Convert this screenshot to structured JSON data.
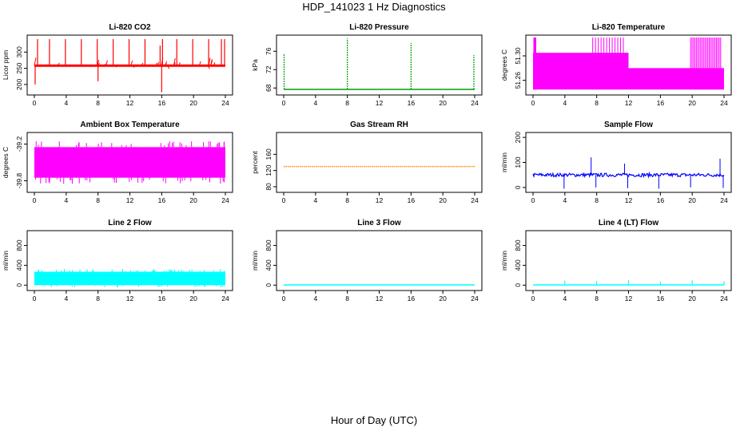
{
  "title": "HDP_141023  1 Hz Diagnostics",
  "xlabel": "Hour of Day (UTC)",
  "chart_data": [
    {
      "type": "line",
      "title": "Li-820 CO2",
      "ylabel": "Licor ppm",
      "color": "#ff0000",
      "xlim": [
        0,
        24
      ],
      "ylim": [
        175,
        345
      ],
      "xticks": [
        0,
        4,
        8,
        12,
        16,
        20,
        24
      ],
      "yticks": [
        200,
        250,
        300
      ],
      "baseline": 258,
      "spikes": [
        {
          "x": 0.1,
          "y": 200
        },
        {
          "x": 0.4,
          "y": 340
        },
        {
          "x": 1.9,
          "y": 340
        },
        {
          "x": 3.9,
          "y": 340
        },
        {
          "x": 5.9,
          "y": 340
        },
        {
          "x": 7.9,
          "y": 340
        },
        {
          "x": 8.0,
          "y": 210
        },
        {
          "x": 9.9,
          "y": 340
        },
        {
          "x": 11.9,
          "y": 340
        },
        {
          "x": 13.9,
          "y": 340
        },
        {
          "x": 16.0,
          "y": 176
        },
        {
          "x": 15.8,
          "y": 320
        },
        {
          "x": 16.1,
          "y": 340
        },
        {
          "x": 17.9,
          "y": 340
        },
        {
          "x": 19.9,
          "y": 340
        },
        {
          "x": 21.9,
          "y": 340
        },
        {
          "x": 23.5,
          "y": 340
        },
        {
          "x": 23.9,
          "y": 340
        }
      ]
    },
    {
      "type": "line",
      "title": "Li-820 Pressure",
      "ylabel": "kPa",
      "color": "#00a000",
      "xlim": [
        0,
        24
      ],
      "ylim": [
        67,
        79
      ],
      "xticks": [
        0,
        4,
        8,
        12,
        16,
        20,
        24
      ],
      "yticks": [
        68,
        72,
        76
      ],
      "baseline": 67.7,
      "spikes": [
        {
          "x": 0.05,
          "y": 75.5
        },
        {
          "x": 8.0,
          "y": 78.8
        },
        {
          "x": 16.0,
          "y": 77.8
        },
        {
          "x": 23.9,
          "y": 75.2
        }
      ]
    },
    {
      "type": "area",
      "title": "Li-820 Temperature",
      "ylabel": "degrees C",
      "color": "#ff00ff",
      "xlim": [
        0,
        24
      ],
      "ylim": [
        51.24,
        51.33
      ],
      "xticks": [
        0,
        4,
        8,
        12,
        16,
        20,
        24
      ],
      "yticks": [
        51.26,
        51.3
      ],
      "band_low": 51.245,
      "band_high_segments": [
        [
          0,
          12,
          51.305
        ],
        [
          12,
          24,
          51.28
        ]
      ],
      "top": 51.33
    },
    {
      "type": "area",
      "title": "Ambient Box Temperature",
      "ylabel": "degrees C",
      "color": "#ff00ff",
      "xlim": [
        0,
        24
      ],
      "ylim": [
        -39.95,
        -39.05
      ],
      "xticks": [
        0,
        4,
        8,
        12,
        16,
        20,
        24
      ],
      "yticks": [
        -39.8,
        -39.2
      ],
      "band_low": -39.75,
      "band_high": -39.25
    },
    {
      "type": "line",
      "title": "Gas Stream RH",
      "ylabel": "percent",
      "color": "#ff8c00",
      "xlim": [
        0,
        24
      ],
      "ylim": [
        72,
        208
      ],
      "xticks": [
        0,
        4,
        8,
        12,
        16,
        20,
        24
      ],
      "yticks": [
        80,
        120,
        160
      ],
      "baseline": 130
    },
    {
      "type": "line",
      "title": "Sample Flow",
      "ylabel": "ml/min",
      "color": "#0000ff",
      "xlim": [
        0,
        24
      ],
      "ylim": [
        -10,
        210
      ],
      "xticks": [
        0,
        4,
        8,
        12,
        16,
        20,
        24
      ],
      "yticks": [
        0,
        100,
        200
      ],
      "baseline": 50
    },
    {
      "type": "area",
      "title": "Line 2 Flow",
      "ylabel": "ml/min",
      "color": "#00ffff",
      "xlim": [
        0,
        24
      ],
      "ylim": [
        -60,
        1050
      ],
      "xticks": [
        0,
        4,
        8,
        12,
        16,
        20,
        24
      ],
      "yticks": [
        0,
        400,
        800
      ],
      "band_low": 0,
      "band_high": 270
    },
    {
      "type": "line",
      "title": "Line 3 Flow",
      "ylabel": "ml/min",
      "color": "#00ffff",
      "xlim": [
        0,
        24
      ],
      "ylim": [
        -60,
        1050
      ],
      "xticks": [
        0,
        4,
        8,
        12,
        16,
        20,
        24
      ],
      "yticks": [
        0,
        400,
        800
      ],
      "baseline": 5
    },
    {
      "type": "line",
      "title": "Line 4 (LT) Flow",
      "ylabel": "ml/min",
      "color": "#00ffff",
      "xlim": [
        0,
        24
      ],
      "ylim": [
        -60,
        1050
      ],
      "xticks": [
        0,
        4,
        8,
        12,
        16,
        20,
        24
      ],
      "yticks": [
        0,
        400,
        800
      ],
      "baseline": 5,
      "spikes": [
        {
          "x": 4,
          "y": 90
        },
        {
          "x": 8,
          "y": 80
        },
        {
          "x": 12,
          "y": 100
        },
        {
          "x": 16,
          "y": 70
        },
        {
          "x": 20,
          "y": 95
        },
        {
          "x": 24,
          "y": 80
        }
      ]
    }
  ]
}
